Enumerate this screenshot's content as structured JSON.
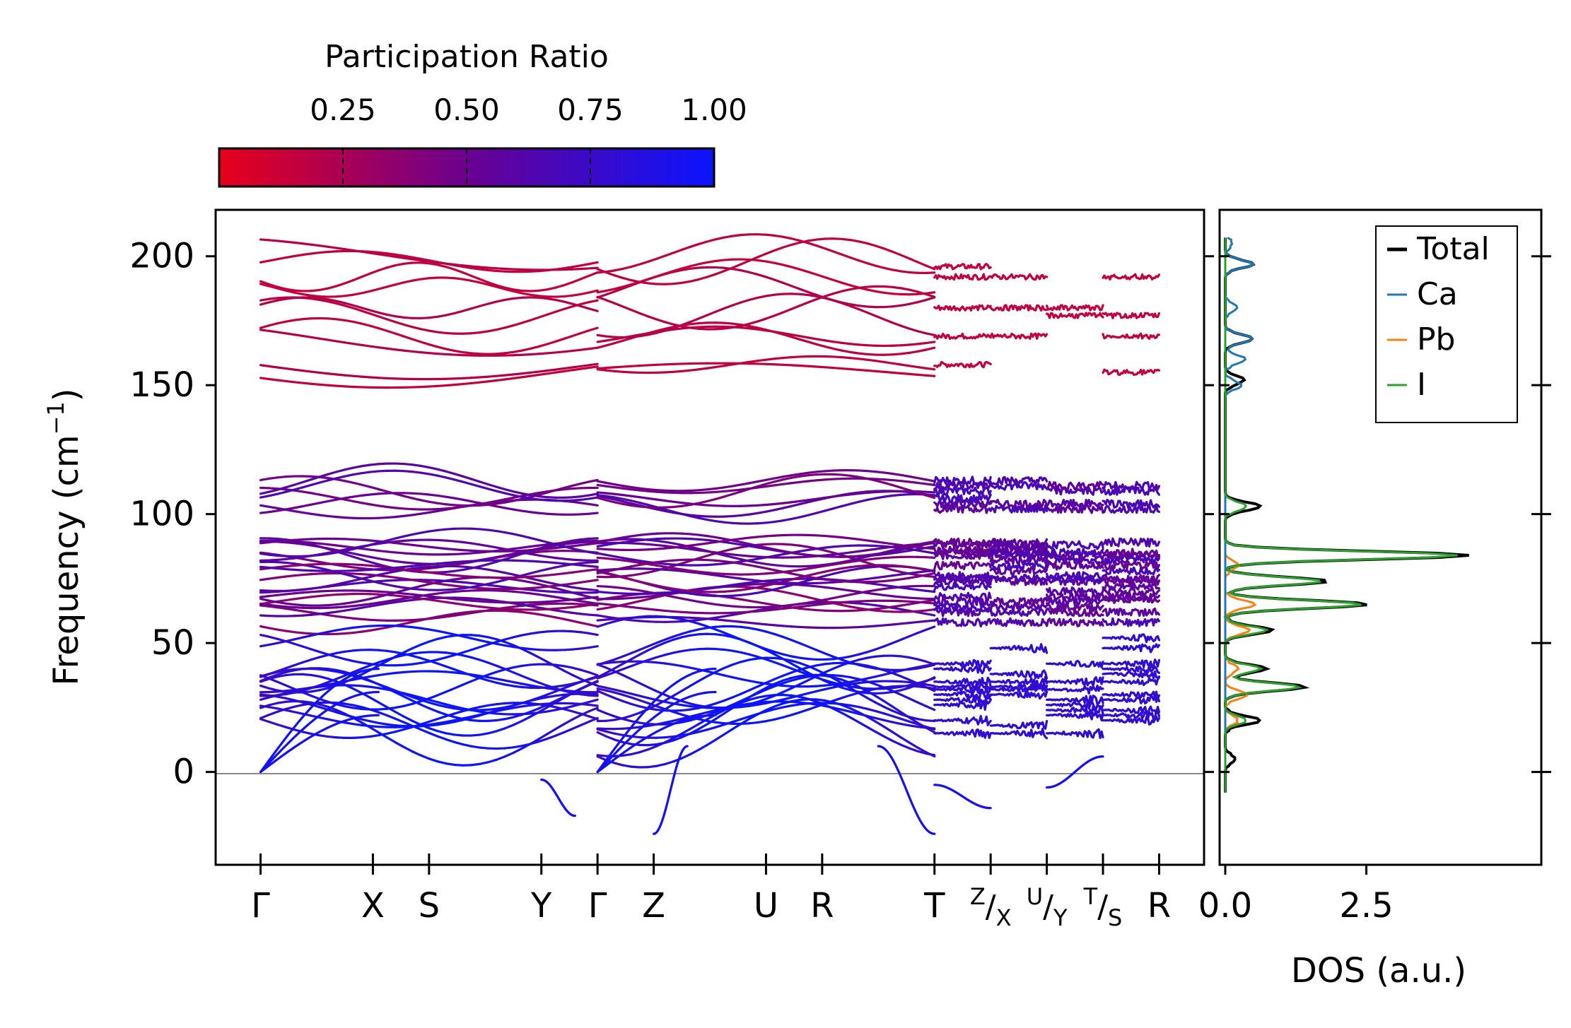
{
  "colors": {
    "low": "#e8001a",
    "high": "#0a14ff",
    "total": "#000000",
    "ca": "#1f77b4",
    "pb": "#ff7f0e",
    "i": "#2ca02c",
    "zero_line": "#888888"
  },
  "colorbar": {
    "title": "Participation Ratio",
    "ticks": [
      "0.25",
      "0.50",
      "0.75",
      "1.00"
    ],
    "tick_values": [
      0.25,
      0.5,
      0.75,
      1.0
    ],
    "range": [
      0.0,
      1.0
    ]
  },
  "chart_data": [
    {
      "type": "line",
      "name": "phonon band structure",
      "ylabel_main": "Frequency (cm",
      "ylabel_sup": "−1",
      "ylabel_end": ")",
      "ylim": [
        -36,
        218
      ],
      "yticks": [
        0,
        50,
        100,
        150,
        200
      ],
      "ytick_labels": [
        "0",
        "50",
        "100",
        "150",
        "200"
      ],
      "x_positions": [
        0,
        1,
        1.5,
        2.5,
        3.0,
        3.5,
        4.5,
        5.0,
        6.0,
        6.5,
        7.0,
        7.5,
        8.0
      ],
      "xlim": [
        -0.4,
        8.4
      ],
      "kpoint_labels": [
        "Γ",
        "X",
        "S",
        "Y",
        "Γ",
        "Z",
        "U",
        "R",
        "T",
        "",
        "",
        "",
        "R"
      ],
      "segment_labels": [
        {
          "a": "Z",
          "b": "X"
        },
        {
          "a": "U",
          "b": "Y"
        },
        {
          "a": "T",
          "b": "S"
        }
      ],
      "path_segments": [
        [
          0,
          3.0
        ],
        [
          3.0,
          6.0
        ]
      ],
      "isolated_segments": [
        [
          6.0,
          6.5
        ],
        [
          6.5,
          7.0
        ],
        [
          7.0,
          7.5
        ],
        [
          7.5,
          8.0
        ]
      ],
      "high_bands": [
        155,
        158,
        168,
        169,
        177,
        180,
        192,
        196,
        202,
        205
      ],
      "mid_bands": [
        82,
        84,
        85,
        86,
        87,
        88,
        89,
        102,
        104,
        106,
        109,
        111,
        113
      ],
      "lower_mid_bands": [
        58,
        62,
        64,
        66,
        67,
        68,
        70,
        72,
        74,
        75,
        76,
        78,
        80
      ],
      "acoustic_top_bands": [
        15,
        18,
        20,
        22,
        24,
        26,
        28,
        30,
        32,
        33,
        35,
        38,
        40,
        42,
        48,
        52
      ],
      "imaginary_modes": [
        {
          "x": [
            2.5,
            2.8
          ],
          "y": [
            -3,
            -17
          ]
        },
        {
          "x": [
            3.5,
            3.8
          ],
          "y": [
            -24,
            10
          ]
        },
        {
          "x": [
            5.5,
            6.0
          ],
          "y": [
            10,
            -24
          ]
        },
        {
          "x": [
            6.0,
            6.5
          ],
          "y": [
            -5,
            -14
          ]
        },
        {
          "x": [
            7.0,
            7.5
          ],
          "y": [
            -6,
            6
          ]
        }
      ]
    },
    {
      "type": "line",
      "name": "density of states",
      "xlabel": "DOS (a.u.)",
      "xlim": [
        -0.1,
        5.6
      ],
      "xticks": [
        0.0,
        2.5
      ],
      "xtick_labels": [
        "0.0",
        "2.5"
      ],
      "ylim": [
        -36,
        218
      ],
      "legend": [
        "Total",
        "Ca",
        "Pb",
        "I"
      ],
      "legend_position": "top-right",
      "peaks": {
        "total": [
          [
            5,
            0.15
          ],
          [
            20,
            0.6
          ],
          [
            33,
            1.4
          ],
          [
            40,
            0.7
          ],
          [
            55,
            0.8
          ],
          [
            65,
            2.5
          ],
          [
            74,
            1.8
          ],
          [
            84,
            4.3
          ],
          [
            103,
            0.6
          ],
          [
            152,
            0.3
          ],
          [
            168,
            0.45
          ],
          [
            197,
            0.45
          ]
        ],
        "ca": [
          [
            150,
            0.25
          ],
          [
            160,
            0.35
          ],
          [
            168,
            0.45
          ],
          [
            180,
            0.2
          ],
          [
            197,
            0.45
          ],
          [
            205,
            0.1
          ]
        ],
        "pb": [
          [
            20,
            0.2
          ],
          [
            30,
            0.35
          ],
          [
            40,
            0.2
          ],
          [
            55,
            0.4
          ],
          [
            65,
            0.5
          ],
          [
            80,
            0.2
          ]
        ],
        "i": [
          [
            20,
            0.35
          ],
          [
            33,
            1.3
          ],
          [
            40,
            0.6
          ],
          [
            55,
            0.7
          ],
          [
            65,
            2.4
          ],
          [
            74,
            1.7
          ],
          [
            84,
            4.1
          ],
          [
            103,
            0.35
          ]
        ]
      }
    }
  ]
}
